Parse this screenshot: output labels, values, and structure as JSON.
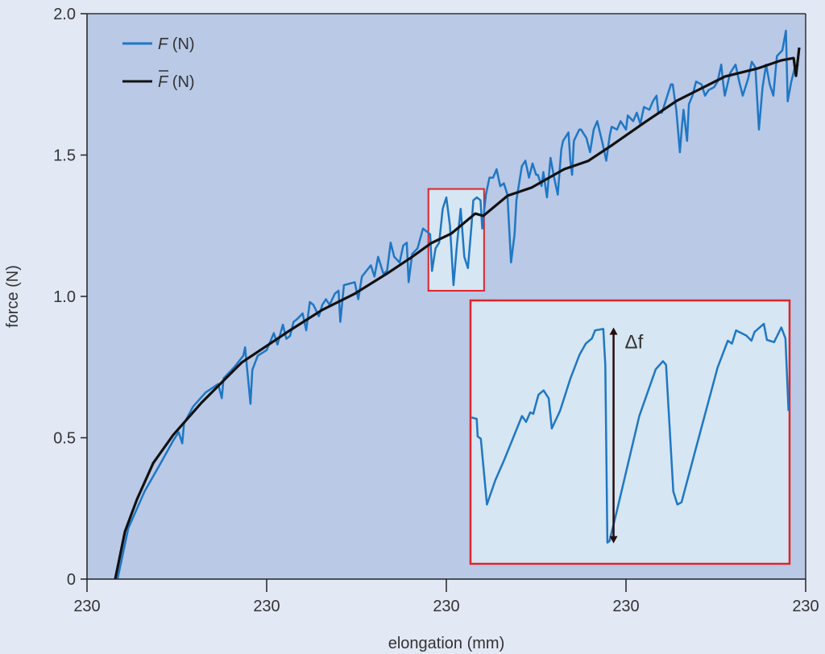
{
  "chart_data": {
    "type": "line",
    "title": "",
    "xlabel": "elongation (mm)",
    "ylabel": "force (N)",
    "x_tick_labels": [
      "230",
      "230",
      "230",
      "230",
      "230"
    ],
    "y_ticks": [
      0,
      0.5,
      1.0,
      1.5,
      2.0
    ],
    "y_tick_labels": [
      "0",
      "0.5",
      "1.0",
      "1.5",
      "2.0"
    ],
    "xlim": [
      0,
      4
    ],
    "ylim": [
      0,
      2.0
    ],
    "grid": false,
    "legend_position": "top-left",
    "colors": {
      "background": "#e3e8f5",
      "plot_background": "#b9c9e6",
      "inset_background": "#d6e6f2",
      "highlight_box": "#e0242c",
      "force": "#1f77c4",
      "mean_force": "#111111",
      "arrow": "#2a0c0c"
    },
    "series": [
      {
        "name": "F (N)",
        "legend_main": "F",
        "legend_unit": "(N)",
        "points": [
          [
            0.17,
            0
          ],
          [
            0.23,
            0.18
          ],
          [
            0.32,
            0.31
          ],
          [
            0.41,
            0.41
          ],
          [
            0.48,
            0.49
          ],
          [
            0.51,
            0.52
          ],
          [
            0.53,
            0.48
          ],
          [
            0.54,
            0.55
          ],
          [
            0.59,
            0.61
          ],
          [
            0.66,
            0.66
          ],
          [
            0.73,
            0.69
          ],
          [
            0.75,
            0.64
          ],
          [
            0.76,
            0.71
          ],
          [
            0.82,
            0.75
          ],
          [
            0.87,
            0.79
          ],
          [
            0.88,
            0.82
          ],
          [
            0.91,
            0.62
          ],
          [
            0.92,
            0.74
          ],
          [
            0.95,
            0.79
          ],
          [
            1.0,
            0.81
          ],
          [
            1.04,
            0.87
          ],
          [
            1.06,
            0.83
          ],
          [
            1.09,
            0.9
          ],
          [
            1.11,
            0.85
          ],
          [
            1.13,
            0.86
          ],
          [
            1.15,
            0.91
          ],
          [
            1.17,
            0.92
          ],
          [
            1.2,
            0.94
          ],
          [
            1.22,
            0.88
          ],
          [
            1.24,
            0.98
          ],
          [
            1.26,
            0.97
          ],
          [
            1.29,
            0.93
          ],
          [
            1.31,
            0.97
          ],
          [
            1.33,
            0.99
          ],
          [
            1.35,
            0.97
          ],
          [
            1.38,
            1.01
          ],
          [
            1.4,
            1.02
          ],
          [
            1.41,
            0.91
          ],
          [
            1.43,
            1.04
          ],
          [
            1.49,
            1.05
          ],
          [
            1.51,
            0.99
          ],
          [
            1.53,
            1.07
          ],
          [
            1.58,
            1.11
          ],
          [
            1.6,
            1.07
          ],
          [
            1.62,
            1.14
          ],
          [
            1.65,
            1.08
          ],
          [
            1.67,
            1.09
          ],
          [
            1.69,
            1.19
          ],
          [
            1.71,
            1.14
          ],
          [
            1.74,
            1.12
          ],
          [
            1.76,
            1.18
          ],
          [
            1.78,
            1.19
          ],
          [
            1.79,
            1.05
          ],
          [
            1.81,
            1.15
          ],
          [
            1.84,
            1.17
          ],
          [
            1.87,
            1.24
          ],
          [
            1.91,
            1.22
          ],
          [
            1.92,
            1.09
          ],
          [
            1.94,
            1.17
          ],
          [
            1.96,
            1.19
          ],
          [
            1.98,
            1.31
          ],
          [
            2.0,
            1.35
          ],
          [
            2.02,
            1.25
          ],
          [
            2.04,
            1.04
          ],
          [
            2.06,
            1.19
          ],
          [
            2.08,
            1.31
          ],
          [
            2.1,
            1.14
          ],
          [
            2.12,
            1.1
          ],
          [
            2.14,
            1.25
          ],
          [
            2.15,
            1.34
          ],
          [
            2.17,
            1.35
          ],
          [
            2.19,
            1.34
          ],
          [
            2.2,
            1.24
          ],
          [
            2.22,
            1.36
          ],
          [
            2.24,
            1.42
          ],
          [
            2.26,
            1.42
          ],
          [
            2.28,
            1.45
          ],
          [
            2.3,
            1.39
          ],
          [
            2.32,
            1.4
          ],
          [
            2.34,
            1.36
          ],
          [
            2.36,
            1.12
          ],
          [
            2.38,
            1.22
          ],
          [
            2.39,
            1.34
          ],
          [
            2.42,
            1.46
          ],
          [
            2.44,
            1.48
          ],
          [
            2.46,
            1.42
          ],
          [
            2.48,
            1.47
          ],
          [
            2.5,
            1.43
          ],
          [
            2.51,
            1.43
          ],
          [
            2.53,
            1.39
          ],
          [
            2.54,
            1.44
          ],
          [
            2.56,
            1.35
          ],
          [
            2.58,
            1.49
          ],
          [
            2.6,
            1.42
          ],
          [
            2.62,
            1.36
          ],
          [
            2.64,
            1.52
          ],
          [
            2.65,
            1.55
          ],
          [
            2.68,
            1.58
          ],
          [
            2.69,
            1.48
          ],
          [
            2.7,
            1.43
          ],
          [
            2.71,
            1.55
          ],
          [
            2.74,
            1.59
          ],
          [
            2.75,
            1.59
          ],
          [
            2.78,
            1.56
          ],
          [
            2.8,
            1.51
          ],
          [
            2.82,
            1.59
          ],
          [
            2.84,
            1.62
          ],
          [
            2.87,
            1.54
          ],
          [
            2.89,
            1.48
          ],
          [
            2.91,
            1.57
          ],
          [
            2.92,
            1.6
          ],
          [
            2.95,
            1.59
          ],
          [
            2.97,
            1.62
          ],
          [
            3.0,
            1.59
          ],
          [
            3.01,
            1.64
          ],
          [
            3.04,
            1.62
          ],
          [
            3.06,
            1.65
          ],
          [
            3.08,
            1.61
          ],
          [
            3.1,
            1.67
          ],
          [
            3.13,
            1.66
          ],
          [
            3.15,
            1.69
          ],
          [
            3.17,
            1.71
          ],
          [
            3.18,
            1.65
          ],
          [
            3.2,
            1.65
          ],
          [
            3.22,
            1.69
          ],
          [
            3.25,
            1.75
          ],
          [
            3.26,
            1.75
          ],
          [
            3.28,
            1.66
          ],
          [
            3.3,
            1.51
          ],
          [
            3.31,
            1.59
          ],
          [
            3.32,
            1.66
          ],
          [
            3.34,
            1.55
          ],
          [
            3.35,
            1.68
          ],
          [
            3.37,
            1.71
          ],
          [
            3.39,
            1.76
          ],
          [
            3.42,
            1.75
          ],
          [
            3.44,
            1.71
          ],
          [
            3.46,
            1.73
          ],
          [
            3.49,
            1.74
          ],
          [
            3.51,
            1.76
          ],
          [
            3.53,
            1.82
          ],
          [
            3.54,
            1.76
          ],
          [
            3.55,
            1.71
          ],
          [
            3.58,
            1.79
          ],
          [
            3.61,
            1.82
          ],
          [
            3.63,
            1.76
          ],
          [
            3.65,
            1.71
          ],
          [
            3.68,
            1.77
          ],
          [
            3.7,
            1.83
          ],
          [
            3.72,
            1.81
          ],
          [
            3.74,
            1.59
          ],
          [
            3.76,
            1.74
          ],
          [
            3.78,
            1.82
          ],
          [
            3.8,
            1.75
          ],
          [
            3.82,
            1.71
          ],
          [
            3.84,
            1.85
          ],
          [
            3.87,
            1.87
          ],
          [
            3.89,
            1.94
          ],
          [
            3.9,
            1.69
          ],
          [
            3.92,
            1.76
          ],
          [
            3.94,
            1.81
          ],
          [
            3.96,
            1.82
          ]
        ]
      },
      {
        "name": "F̄ (N)",
        "legend_main": "F",
        "legend_unit": "(N)",
        "points": [
          [
            0.157,
            0
          ],
          [
            0.211,
            0.168
          ],
          [
            0.278,
            0.282
          ],
          [
            0.368,
            0.41
          ],
          [
            0.48,
            0.51
          ],
          [
            0.637,
            0.624
          ],
          [
            0.771,
            0.709
          ],
          [
            0.861,
            0.766
          ],
          [
            0.996,
            0.823
          ],
          [
            1.13,
            0.88
          ],
          [
            1.309,
            0.952
          ],
          [
            1.489,
            1.009
          ],
          [
            1.668,
            1.08
          ],
          [
            1.803,
            1.137
          ],
          [
            1.915,
            1.188
          ],
          [
            2.027,
            1.222
          ],
          [
            2.161,
            1.293
          ],
          [
            2.206,
            1.285
          ],
          [
            2.341,
            1.356
          ],
          [
            2.475,
            1.385
          ],
          [
            2.655,
            1.45
          ],
          [
            2.789,
            1.479
          ],
          [
            2.924,
            1.536
          ],
          [
            3.103,
            1.615
          ],
          [
            3.283,
            1.692
          ],
          [
            3.417,
            1.735
          ],
          [
            3.552,
            1.778
          ],
          [
            3.731,
            1.806
          ],
          [
            3.865,
            1.835
          ],
          [
            3.933,
            1.843
          ],
          [
            3.946,
            1.78
          ],
          [
            3.964,
            1.88
          ]
        ]
      }
    ],
    "highlight_region": {
      "x": [
        1.9,
        2.21
      ],
      "y": [
        1.02,
        1.38
      ]
    },
    "inset": {
      "xlim": [
        1.9,
        2.21
      ],
      "ylim": [
        1.02,
        1.38
      ],
      "annotation": "Δf",
      "arrow": {
        "x": 2.039,
        "y_top": 1.343,
        "y_bottom": 1.048
      },
      "points": [
        [
          1.901,
          1.22
        ],
        [
          1.906,
          1.218
        ],
        [
          1.907,
          1.194
        ],
        [
          1.91,
          1.191
        ],
        [
          1.916,
          1.101
        ],
        [
          1.924,
          1.134
        ],
        [
          1.933,
          1.163
        ],
        [
          1.95,
          1.222
        ],
        [
          1.954,
          1.214
        ],
        [
          1.958,
          1.227
        ],
        [
          1.961,
          1.225
        ],
        [
          1.966,
          1.251
        ],
        [
          1.971,
          1.257
        ],
        [
          1.976,
          1.246
        ],
        [
          1.979,
          1.205
        ],
        [
          1.987,
          1.229
        ],
        [
          1.997,
          1.273
        ],
        [
          2.006,
          1.306
        ],
        [
          2.012,
          1.321
        ],
        [
          2.018,
          1.328
        ],
        [
          2.021,
          1.339
        ],
        [
          2.029,
          1.341
        ],
        [
          2.031,
          1.292
        ],
        [
          2.033,
          1.049
        ],
        [
          2.035,
          1.051
        ],
        [
          2.043,
          1.097
        ],
        [
          2.064,
          1.222
        ],
        [
          2.08,
          1.286
        ],
        [
          2.087,
          1.297
        ],
        [
          2.09,
          1.292
        ],
        [
          2.097,
          1.119
        ],
        [
          2.101,
          1.101
        ],
        [
          2.105,
          1.104
        ],
        [
          2.119,
          1.178
        ],
        [
          2.14,
          1.288
        ],
        [
          2.15,
          1.325
        ],
        [
          2.154,
          1.321
        ],
        [
          2.158,
          1.339
        ],
        [
          2.168,
          1.332
        ],
        [
          2.173,
          1.325
        ],
        [
          2.176,
          1.337
        ],
        [
          2.185,
          1.348
        ],
        [
          2.188,
          1.326
        ],
        [
          2.195,
          1.323
        ],
        [
          2.202,
          1.343
        ],
        [
          2.206,
          1.328
        ],
        [
          2.209,
          1.229
        ]
      ]
    }
  }
}
